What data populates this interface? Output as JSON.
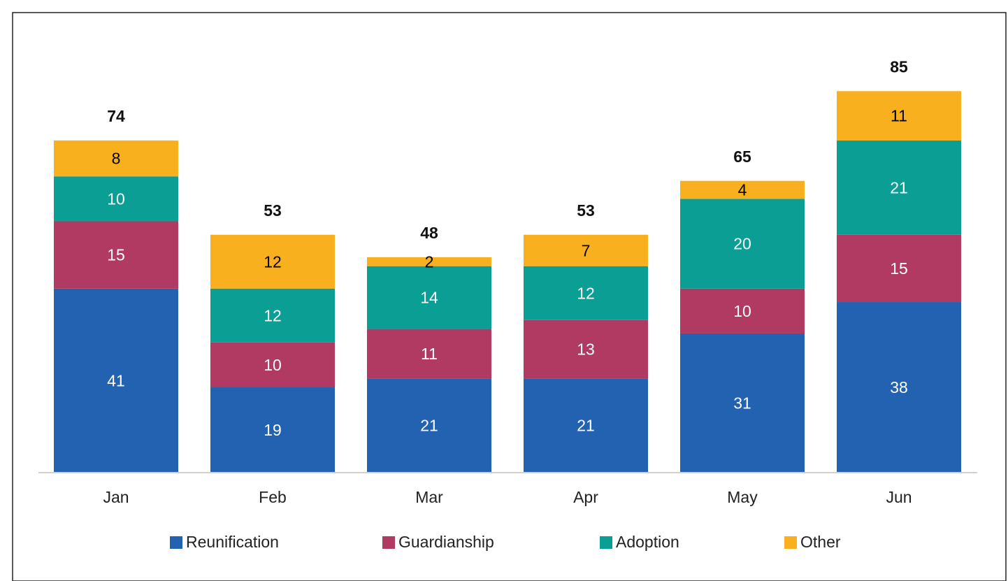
{
  "chart_data": {
    "type": "stacked_bar",
    "categories": [
      "Jan",
      "Feb",
      "Mar",
      "Apr",
      "May",
      "Jun"
    ],
    "series": [
      {
        "name": "Reunification",
        "color": "#2362b0",
        "label_color": "#ffffff",
        "values": [
          41,
          19,
          21,
          21,
          31,
          38
        ]
      },
      {
        "name": "Guardianship",
        "color": "#b03a62",
        "label_color": "#ffffff",
        "values": [
          15,
          10,
          11,
          13,
          10,
          15
        ]
      },
      {
        "name": "Adoption",
        "color": "#0a9e94",
        "label_color": "#ffffff",
        "values": [
          10,
          12,
          14,
          12,
          20,
          21
        ]
      },
      {
        "name": "Other",
        "color": "#f9b01e",
        "label_color": "#000000",
        "values": [
          8,
          12,
          2,
          7,
          4,
          11
        ]
      }
    ],
    "totals": [
      74,
      53,
      48,
      53,
      65,
      85
    ],
    "ylim": [
      0,
      100
    ],
    "legend": "bottom"
  }
}
